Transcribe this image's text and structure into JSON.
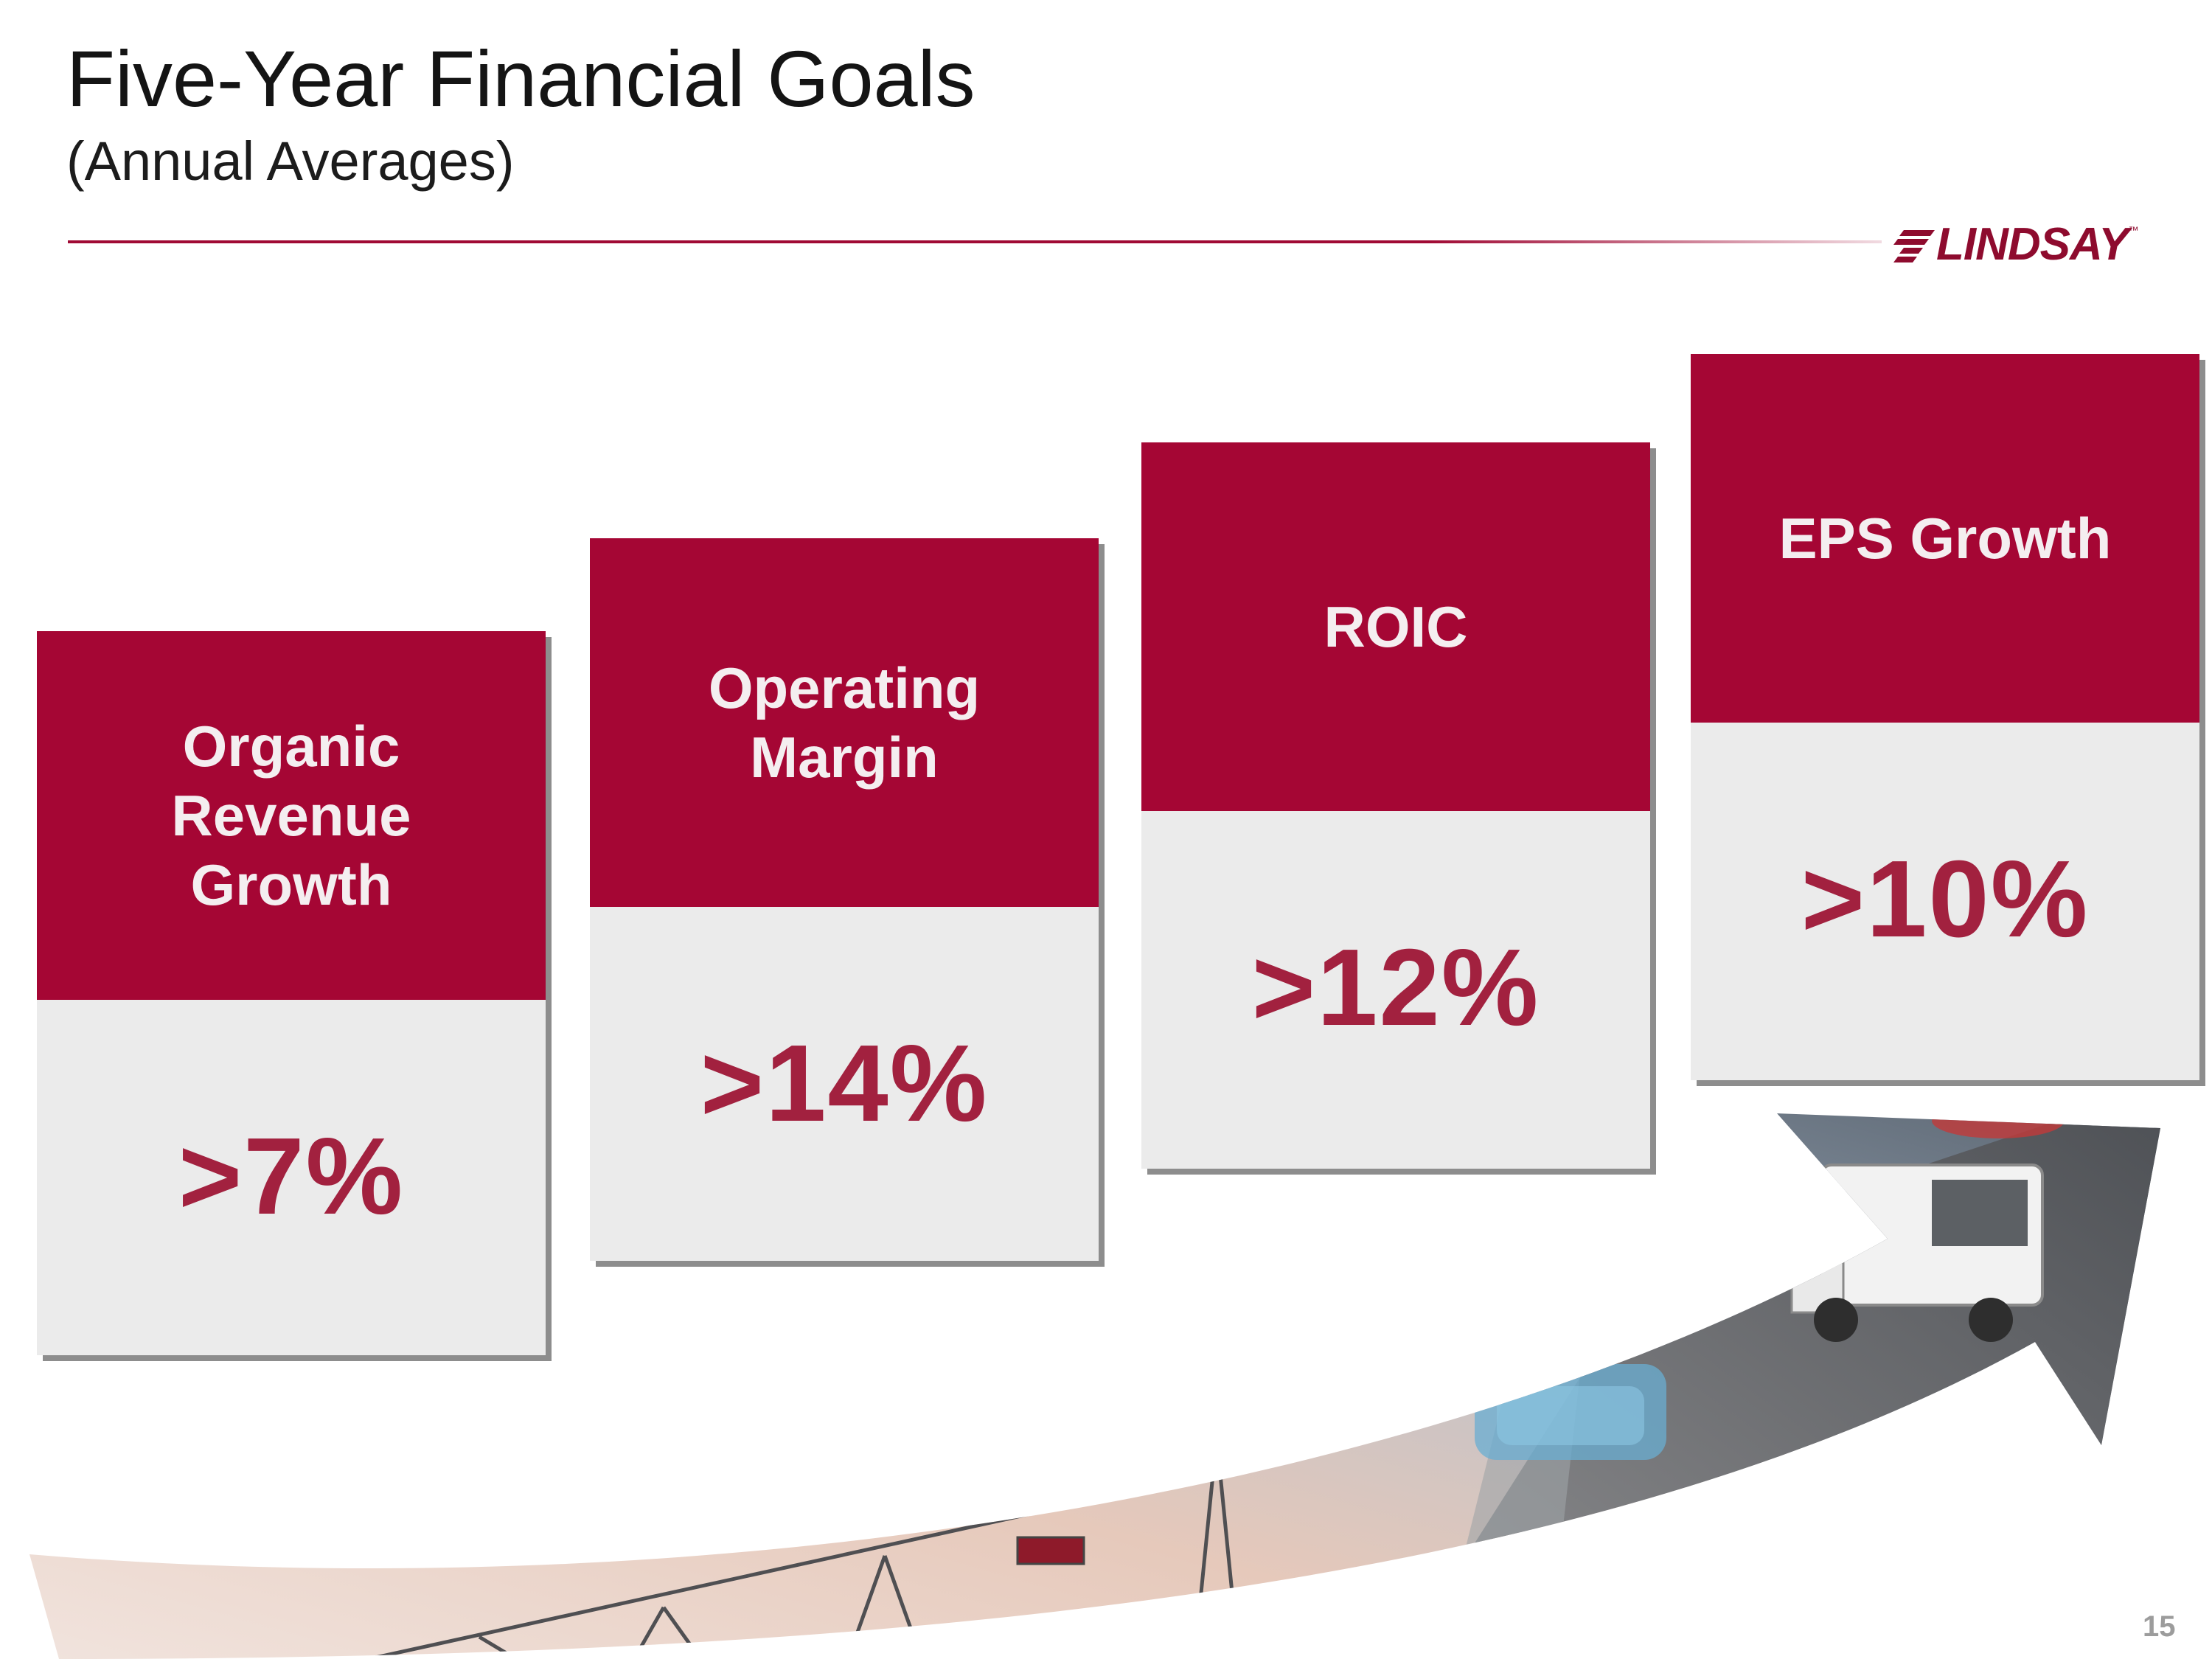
{
  "header": {
    "title": "Five-Year Financial Goals",
    "subtitle": "(Annual Averages)"
  },
  "logo": {
    "text": "LINDSAY",
    "tm": "™"
  },
  "goals": [
    {
      "label": "Organic\nRevenue\nGrowth",
      "value": ">7%"
    },
    {
      "label": "Operating\nMargin",
      "value": ">14%"
    },
    {
      "label": "ROIC",
      "value": ">12%"
    },
    {
      "label": "EPS Growth",
      "value": ">10%"
    }
  ],
  "page_number": "15",
  "colors": {
    "brand": "#a50634",
    "value_text": "#a2213f",
    "card_bg": "#ebebeb"
  }
}
